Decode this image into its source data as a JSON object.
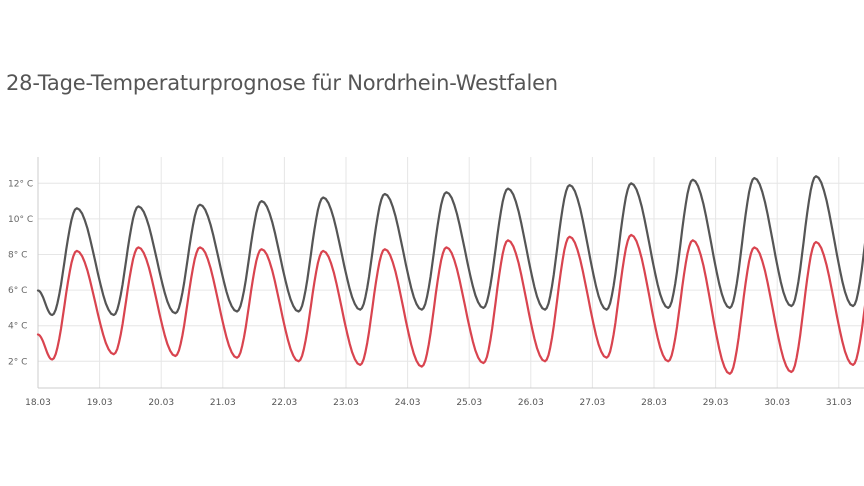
{
  "chart_data": {
    "type": "line",
    "title": "28-Tage-Temperaturprognose für Nordrhein-Westfalen",
    "xlabel": "",
    "ylabel": "",
    "x_ticks": [
      "18.03",
      "19.03",
      "20.03",
      "21.03",
      "22.03",
      "23.03",
      "24.03",
      "25.03",
      "26.03",
      "27.03",
      "28.03",
      "29.03",
      "30.03",
      "31.03"
    ],
    "y_ticks": [
      "2° C",
      "4° C",
      "6° C",
      "8° C",
      "10° C",
      "12° C"
    ],
    "ylim": [
      0.5,
      13.2
    ],
    "xlim_days": [
      0,
      13.45
    ],
    "grid": true,
    "legend": "none",
    "series": [
      {
        "color": "#555555",
        "daily_max": [
          10.6,
          10.7,
          10.8,
          11.0,
          11.2,
          11.4,
          11.5,
          11.7,
          11.9,
          12.0,
          12.2,
          12.3,
          12.4,
          12.4
        ],
        "daily_min": [
          4.6,
          4.6,
          4.7,
          4.8,
          4.8,
          4.9,
          4.9,
          5.0,
          4.9,
          4.9,
          5.0,
          5.0,
          5.1,
          5.1
        ]
      },
      {
        "color": "#d9444f",
        "daily_max": [
          8.2,
          8.4,
          8.4,
          8.3,
          8.2,
          8.3,
          8.4,
          8.8,
          9.0,
          9.1,
          8.8,
          8.4,
          8.7,
          8.7
        ],
        "daily_min": [
          2.1,
          2.4,
          2.3,
          2.2,
          2.0,
          1.8,
          1.7,
          1.9,
          2.0,
          2.2,
          2.0,
          1.3,
          1.4,
          1.8
        ]
      }
    ]
  }
}
